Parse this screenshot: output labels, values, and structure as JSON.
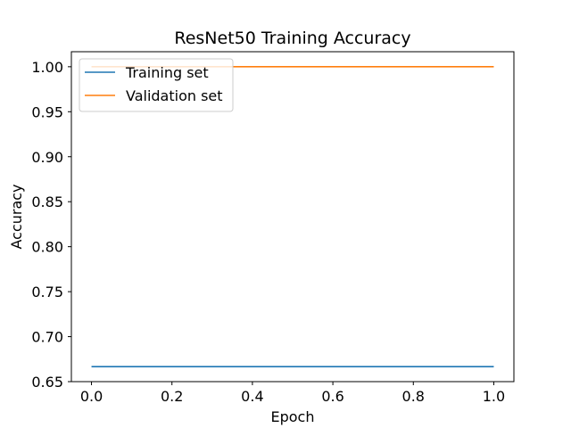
{
  "chart_data": {
    "type": "line",
    "title": "ResNet50 Training Accuracy",
    "xlabel": "Epoch",
    "ylabel": "Accuracy",
    "x": [
      0.0,
      1.0
    ],
    "series": [
      {
        "name": "Training set",
        "values": [
          0.6667,
          0.6667
        ],
        "color": "#1f77b4"
      },
      {
        "name": "Validation set",
        "values": [
          1.0,
          1.0
        ],
        "color": "#ff7f0e"
      }
    ],
    "xlim": [
      -0.05,
      1.05
    ],
    "ylim": [
      0.65,
      1.0167
    ],
    "xticks": [
      0.0,
      0.2,
      0.4,
      0.6,
      0.8,
      1.0
    ],
    "xtick_labels": [
      "0.0",
      "0.2",
      "0.4",
      "0.6",
      "0.8",
      "1.0"
    ],
    "yticks": [
      0.65,
      0.7,
      0.75,
      0.8,
      0.85,
      0.9,
      0.95,
      1.0
    ],
    "ytick_labels": [
      "0.65",
      "0.70",
      "0.75",
      "0.80",
      "0.85",
      "0.90",
      "0.95",
      "1.00"
    ],
    "grid": false,
    "legend_position": "top-left"
  }
}
